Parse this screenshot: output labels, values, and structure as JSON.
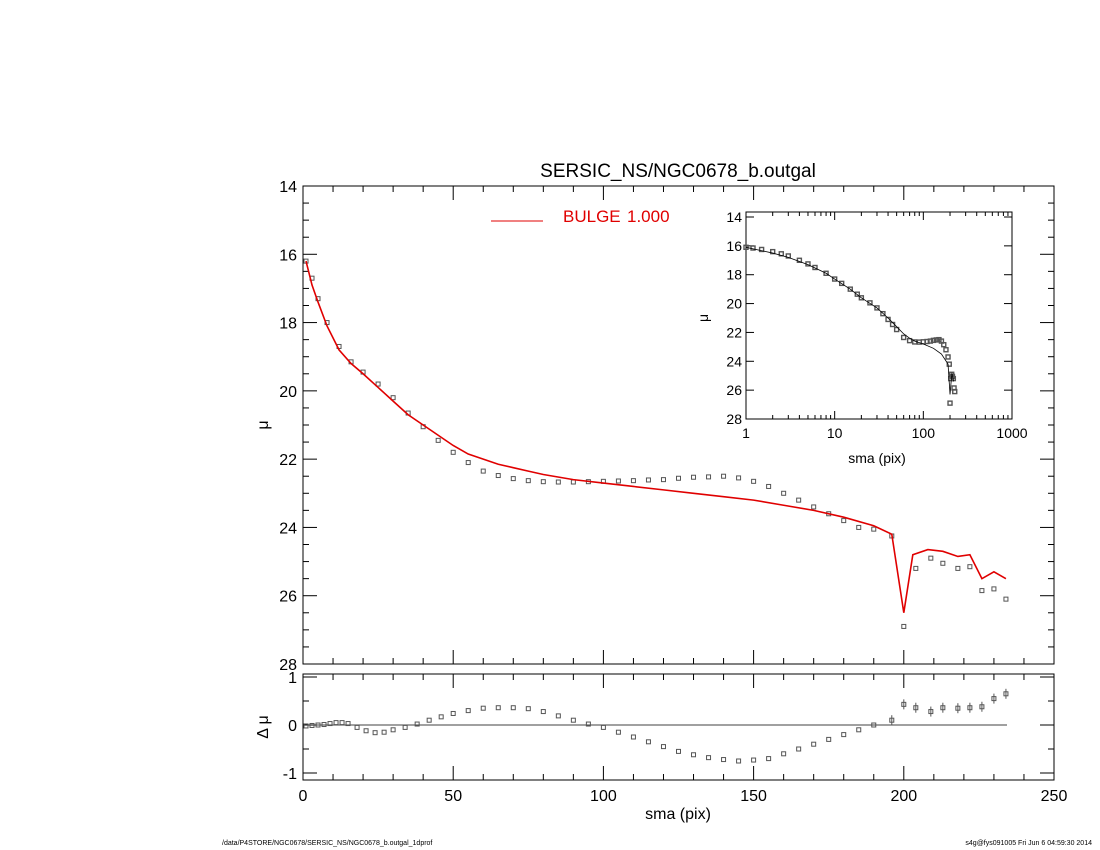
{
  "footer": {
    "left": "/data/P4STORE/NGC0678/SERSIC_NS/NGC0678_b.outgal_1dprof",
    "right": "s4g@fys091005  Fri Jun  6 04:59:30 2014"
  },
  "colors": {
    "model": "#e00000",
    "data": "#555555",
    "axes": "#000000"
  },
  "chart_data": [
    {
      "type": "scatter",
      "title": "SERSIC_NS/NGC0678_b.outgal",
      "xlabel": "",
      "ylabel": "μ",
      "xlim": [
        0,
        250
      ],
      "ylim": [
        28,
        14
      ],
      "x_ticks": [
        "0",
        "50",
        "100",
        "150",
        "200",
        "250"
      ],
      "y_ticks": [
        "14",
        "16",
        "18",
        "20",
        "22",
        "24",
        "26",
        "28"
      ],
      "legend": {
        "label": "BULGE",
        "value": "1.000",
        "placement": "top-center"
      },
      "series": [
        {
          "name": "BULGE",
          "style": "line",
          "x": [
            1,
            3,
            5,
            8,
            12,
            16,
            20,
            25,
            30,
            35,
            40,
            45,
            50,
            55,
            60,
            65,
            70,
            75,
            80,
            90,
            100,
            110,
            120,
            130,
            140,
            150,
            160,
            170,
            180,
            190,
            196,
            200,
            203,
            208,
            213,
            218,
            222,
            226,
            230,
            234
          ],
          "y": [
            16.2,
            16.9,
            17.4,
            18.1,
            18.8,
            19.2,
            19.5,
            19.9,
            20.3,
            20.7,
            21.0,
            21.3,
            21.6,
            21.85,
            22.0,
            22.15,
            22.25,
            22.35,
            22.45,
            22.6,
            22.7,
            22.8,
            22.9,
            23.0,
            23.1,
            23.2,
            23.35,
            23.5,
            23.7,
            23.95,
            24.2,
            26.5,
            24.8,
            24.65,
            24.7,
            24.85,
            24.8,
            25.5,
            25.3,
            25.5
          ]
        },
        {
          "name": "",
          "style": "markers",
          "x": [
            1,
            3,
            5,
            8,
            12,
            16,
            20,
            25,
            30,
            35,
            40,
            45,
            50,
            55,
            60,
            65,
            70,
            75,
            80,
            85,
            90,
            95,
            100,
            105,
            110,
            115,
            120,
            125,
            130,
            135,
            140,
            145,
            150,
            155,
            160,
            165,
            170,
            175,
            180,
            185,
            190,
            196,
            200,
            204,
            209,
            213,
            218,
            222,
            226,
            230,
            234
          ],
          "y": [
            16.2,
            16.7,
            17.3,
            18.0,
            18.7,
            19.15,
            19.45,
            19.8,
            20.2,
            20.65,
            21.05,
            21.45,
            21.8,
            22.1,
            22.35,
            22.48,
            22.57,
            22.63,
            22.66,
            22.67,
            22.67,
            22.66,
            22.65,
            22.64,
            22.63,
            22.61,
            22.6,
            22.56,
            22.53,
            22.52,
            22.5,
            22.55,
            22.65,
            22.8,
            23.0,
            23.2,
            23.4,
            23.6,
            23.8,
            24.0,
            24.05,
            24.25,
            26.9,
            25.2,
            24.9,
            25.05,
            25.2,
            25.15,
            25.85,
            25.8,
            26.1
          ]
        }
      ]
    },
    {
      "type": "scatter",
      "title": "",
      "xlabel": "sma (pix)",
      "ylabel": "Δ μ",
      "xlim": [
        0,
        250
      ],
      "ylim": [
        -1,
        1
      ],
      "x_ticks": [
        "0",
        "50",
        "100",
        "150",
        "200",
        "250"
      ],
      "y_ticks": [
        "1",
        "0",
        "-1"
      ],
      "series": [
        {
          "name": "",
          "style": "markers",
          "x": [
            1,
            3,
            5,
            7,
            9,
            11,
            13,
            15,
            18,
            21,
            24,
            27,
            30,
            34,
            38,
            42,
            46,
            50,
            55,
            60,
            65,
            70,
            75,
            80,
            85,
            90,
            95,
            100,
            105,
            110,
            115,
            120,
            125,
            130,
            135,
            140,
            145,
            150,
            155,
            160,
            165,
            170,
            175,
            180,
            185,
            190,
            196,
            200,
            204,
            209,
            213,
            218,
            222,
            226,
            230,
            234
          ],
          "y": [
            -0.02,
            -0.01,
            0.0,
            0.01,
            0.03,
            0.05,
            0.05,
            0.03,
            -0.05,
            -0.12,
            -0.16,
            -0.15,
            -0.1,
            -0.05,
            0.02,
            0.1,
            0.17,
            0.24,
            0.3,
            0.35,
            0.36,
            0.36,
            0.34,
            0.28,
            0.19,
            0.1,
            0.02,
            -0.05,
            -0.15,
            -0.25,
            -0.35,
            -0.45,
            -0.55,
            -0.62,
            -0.68,
            -0.72,
            -0.75,
            -0.73,
            -0.7,
            -0.6,
            -0.5,
            -0.4,
            -0.3,
            -0.2,
            -0.1,
            0.0,
            0.1,
            0.43,
            0.36,
            0.28,
            0.36,
            0.35,
            0.36,
            0.38,
            0.55,
            0.65
          ]
        }
      ]
    },
    {
      "type": "scatter",
      "title": "",
      "xlabel": "sma (pix)",
      "ylabel": "μ",
      "xscale": "log",
      "xlim": [
        1,
        1000
      ],
      "ylim": [
        28,
        14
      ],
      "x_ticks": [
        "1",
        "10",
        "100",
        "1000"
      ],
      "y_ticks": [
        "14",
        "16",
        "18",
        "20",
        "22",
        "24",
        "26",
        "28"
      ],
      "series": [
        {
          "name": "",
          "style": "line",
          "x": [
            1,
            2,
            3,
            5,
            8,
            10,
            15,
            20,
            30,
            40,
            50,
            60,
            70,
            80,
            100,
            130,
            160,
            190,
            200,
            210,
            220
          ],
          "y": [
            16.1,
            16.5,
            16.8,
            17.3,
            17.9,
            18.3,
            19.0,
            19.6,
            20.3,
            21.0,
            21.6,
            22.1,
            22.4,
            22.6,
            22.8,
            23.1,
            23.5,
            24.2,
            26.3,
            24.8,
            25.4
          ]
        },
        {
          "name": "",
          "style": "markers",
          "x": [
            1,
            1.2,
            1.5,
            2,
            2.5,
            3,
            4,
            5,
            6,
            8,
            10,
            12,
            15,
            18,
            20,
            25,
            30,
            35,
            40,
            45,
            50,
            60,
            70,
            80,
            90,
            100,
            110,
            120,
            130,
            140,
            150,
            160,
            170,
            180,
            190,
            196,
            200,
            204,
            209,
            213,
            218,
            222,
            226
          ],
          "y": [
            16.1,
            16.15,
            16.25,
            16.4,
            16.55,
            16.7,
            17.0,
            17.25,
            17.5,
            17.9,
            18.3,
            18.6,
            19.0,
            19.35,
            19.6,
            19.95,
            20.3,
            20.7,
            21.1,
            21.45,
            21.8,
            22.35,
            22.57,
            22.66,
            22.67,
            22.65,
            22.63,
            22.6,
            22.55,
            22.52,
            22.5,
            22.6,
            22.85,
            23.2,
            23.7,
            24.2,
            26.9,
            25.2,
            24.9,
            25.05,
            25.2,
            25.85,
            26.1
          ]
        }
      ]
    }
  ]
}
